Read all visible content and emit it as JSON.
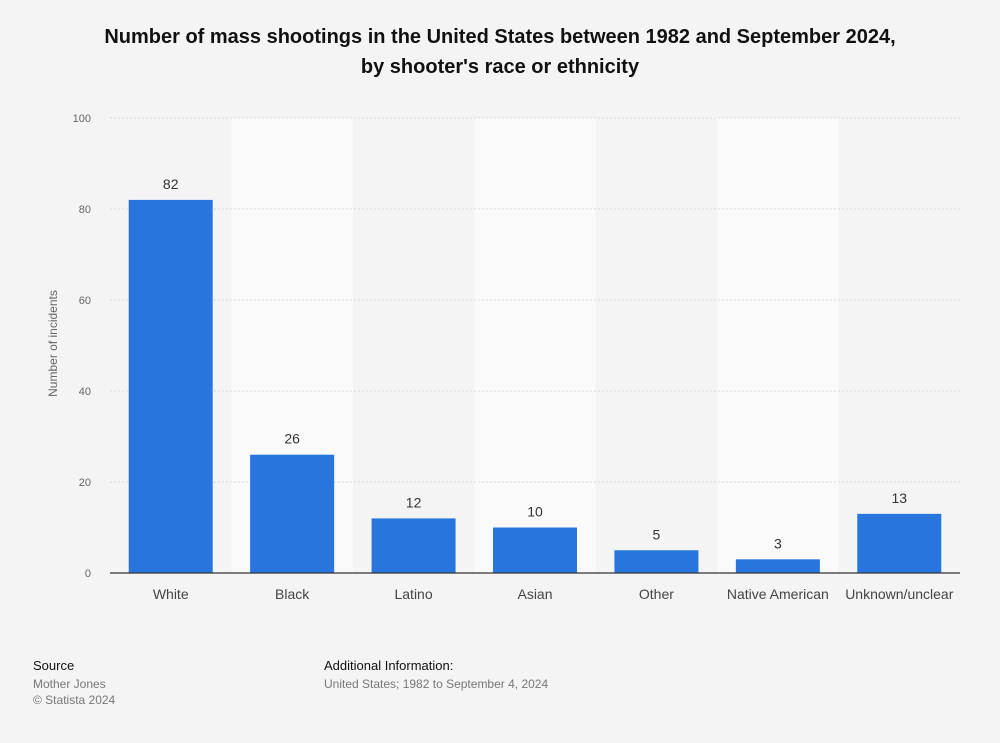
{
  "chart_data": {
    "type": "bar",
    "title_lines": [
      "Number of mass shootings in the United States between 1982 and September 2024,",
      "by shooter's race or ethnicity"
    ],
    "categories": [
      "White",
      "Black",
      "Latino",
      "Asian",
      "Other",
      "Native American",
      "Unknown/unclear"
    ],
    "values": [
      82,
      26,
      12,
      10,
      5,
      3,
      13
    ],
    "value_labels": [
      "82",
      "26",
      "12",
      "10",
      "5",
      "3",
      "13"
    ],
    "ylabel": "Number of incidents",
    "xlabel": "",
    "ylim": [
      0,
      100
    ],
    "yticks": [
      0,
      20,
      40,
      60,
      80,
      100
    ],
    "ytick_labels": [
      "0",
      "20",
      "40",
      "60",
      "80",
      "100"
    ],
    "grid": true,
    "bar_color": "#2876dd"
  },
  "footer": {
    "source_heading": "Source",
    "source_lines": [
      "Mother Jones",
      "© Statista 2024"
    ],
    "additional_heading": "Additional Information:",
    "additional_text": "United States; 1982 to September 4, 2024"
  }
}
